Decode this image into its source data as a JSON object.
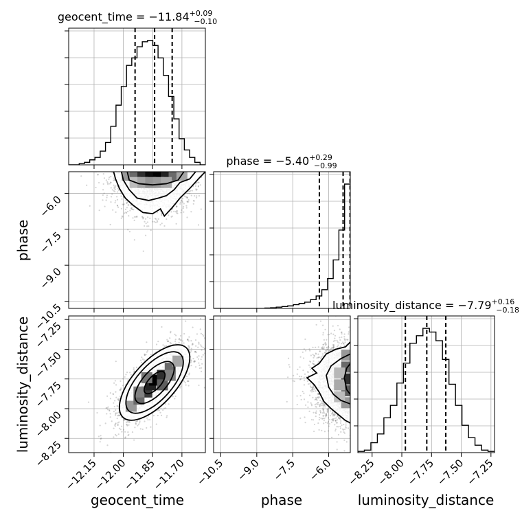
{
  "params": [
    "geocent_time",
    "phase",
    "luminosity_distance"
  ],
  "titles": [
    {
      "label": "geocent_time = ",
      "median": "−11.84",
      "plus": "+0.09",
      "minus": "−0.10"
    },
    {
      "label": "phase = ",
      "median": "−5.40",
      "plus": "+0.29",
      "minus": "−0.99"
    },
    {
      "label": "luminosity_distance = ",
      "median": "−7.79",
      "plus": "+0.16",
      "minus": "−0.18"
    }
  ],
  "axis_labels": {
    "x": [
      "geocent_time",
      "phase",
      "luminosity_distance"
    ],
    "y_row1": "phase",
    "y_row2": "luminosity_distance"
  },
  "chart_data": {
    "type": "corner",
    "grid": true,
    "colors": {
      "line": "#000000",
      "grid": "#b0b0b0",
      "scatter": "#555555"
    },
    "ranges": {
      "geocent_time": [
        -12.28,
        -11.58
      ],
      "phase": [
        -10.8,
        -5.1
      ],
      "luminosity_distance": [
        -8.37,
        -7.22
      ]
    },
    "ticks": {
      "geocent_time": [
        {
          "value": -12.15,
          "label": "−12.15"
        },
        {
          "value": -12.0,
          "label": "−12.00"
        },
        {
          "value": -11.85,
          "label": "−11.85"
        },
        {
          "value": -11.7,
          "label": "−11.70"
        }
      ],
      "phase": [
        {
          "value": -10.5,
          "label": "−10.5"
        },
        {
          "value": -9.0,
          "label": "−9.0"
        },
        {
          "value": -7.5,
          "label": "−7.5"
        },
        {
          "value": -6.0,
          "label": "−6.0"
        }
      ],
      "luminosity_distance": [
        {
          "value": -8.25,
          "label": "−8.25"
        },
        {
          "value": -8.0,
          "label": "−8.00"
        },
        {
          "value": -7.75,
          "label": "−7.75"
        },
        {
          "value": -7.5,
          "label": "−7.50"
        },
        {
          "value": -7.25,
          "label": "−7.25"
        }
      ]
    },
    "diag_yticks": [
      0.2,
      0.4,
      0.6,
      0.8,
      1.0
    ],
    "histograms": {
      "geocent_time": {
        "range": [
          -12.28,
          -11.58
        ],
        "counts": [
          0.0,
          0.0,
          0.01,
          0.02,
          0.04,
          0.06,
          0.11,
          0.18,
          0.31,
          0.48,
          0.63,
          0.8,
          0.86,
          0.95,
          0.99,
          1.0,
          0.96,
          0.86,
          0.72,
          0.55,
          0.37,
          0.21,
          0.12,
          0.06,
          0.02,
          0.0
        ],
        "median": -11.84,
        "lo": -11.94,
        "hi": -11.75
      },
      "phase": {
        "range": [
          -10.8,
          -5.1
        ],
        "counts": [
          0.0,
          0.0,
          0.0,
          0.0,
          0.0,
          0.0,
          0.0,
          0.0,
          0.0,
          0.003,
          0.005,
          0.01,
          0.015,
          0.02,
          0.03,
          0.04,
          0.05,
          0.07,
          0.1,
          0.15,
          0.24,
          0.39,
          0.63,
          1.0
        ],
        "median": -5.4,
        "lo": -6.39,
        "hi": -5.11
      },
      "luminosity_distance": {
        "range": [
          -8.37,
          -7.22
        ],
        "counts": [
          0.01,
          0.02,
          0.08,
          0.15,
          0.28,
          0.38,
          0.56,
          0.72,
          0.88,
          0.94,
          1.0,
          0.97,
          0.9,
          0.75,
          0.55,
          0.38,
          0.22,
          0.12,
          0.06,
          0.02,
          0.01
        ],
        "median": -7.79,
        "lo": -7.97,
        "hi": -7.63
      }
    },
    "pairs": [
      {
        "x": "geocent_time",
        "y": "phase",
        "center": [
          -11.84,
          -5.4
        ],
        "sigma": [
          0.1,
          0.75
        ],
        "rho": 0.0,
        "truncate_y_max": -5.1,
        "density_grid": {
          "x_range": [
            -12.28,
            -11.58
          ],
          "y_range": [
            -10.8,
            -5.1
          ],
          "cells": [
            [
              -11.98,
              -5.25,
              0.35
            ],
            [
              -11.94,
              -5.25,
              0.55
            ],
            [
              -11.9,
              -5.25,
              0.8
            ],
            [
              -11.86,
              -5.25,
              0.95
            ],
            [
              -11.82,
              -5.25,
              1.0
            ],
            [
              -11.78,
              -5.25,
              0.85
            ],
            [
              -11.74,
              -5.25,
              0.55
            ],
            [
              -11.7,
              -5.25,
              0.3
            ],
            [
              -11.94,
              -5.55,
              0.2
            ],
            [
              -11.9,
              -5.55,
              0.3
            ],
            [
              -11.86,
              -5.55,
              0.38
            ],
            [
              -11.82,
              -5.55,
              0.35
            ],
            [
              -11.78,
              -5.55,
              0.28
            ]
          ]
        },
        "contours": [
          [
            [
              -12.05,
              -5.1
            ],
            [
              -12.04,
              -5.4
            ],
            [
              -12.02,
              -5.8
            ],
            [
              -11.99,
              -6.2
            ],
            [
              -11.95,
              -6.5
            ],
            [
              -11.9,
              -6.8
            ],
            [
              -11.85,
              -6.85
            ],
            [
              -11.81,
              -6.65
            ],
            [
              -11.79,
              -6.95
            ],
            [
              -11.75,
              -6.6
            ],
            [
              -11.71,
              -6.2
            ],
            [
              -11.66,
              -5.8
            ],
            [
              -11.61,
              -5.35
            ],
            [
              -11.58,
              -5.1
            ]
          ],
          [
            [
              -12.01,
              -5.1
            ],
            [
              -12.0,
              -5.45
            ],
            [
              -11.97,
              -5.85
            ],
            [
              -11.93,
              -6.2
            ],
            [
              -11.87,
              -6.3
            ],
            [
              -11.82,
              -6.2
            ],
            [
              -11.78,
              -6.1
            ],
            [
              -11.74,
              -5.85
            ],
            [
              -11.71,
              -5.55
            ],
            [
              -11.66,
              -5.4
            ],
            [
              -11.63,
              -5.1
            ]
          ],
          [
            [
              -11.98,
              -5.1
            ],
            [
              -11.97,
              -5.45
            ],
            [
              -11.92,
              -5.6
            ],
            [
              -11.85,
              -5.65
            ],
            [
              -11.78,
              -5.6
            ],
            [
              -11.72,
              -5.45
            ],
            [
              -11.69,
              -5.1
            ]
          ]
        ]
      },
      {
        "x": "geocent_time",
        "y": "luminosity_distance",
        "center": [
          -11.84,
          -7.78
        ],
        "sigma": [
          0.1,
          0.17
        ],
        "rho": 0.72,
        "density_grid": {
          "x_range": [
            -12.28,
            -11.58
          ],
          "y_range": [
            -8.37,
            -7.22
          ],
          "cells": [
            [
              -11.96,
              -7.98,
              0.35
            ],
            [
              -11.92,
              -7.92,
              0.55
            ],
            [
              -11.88,
              -7.86,
              0.75
            ],
            [
              -11.86,
              -7.8,
              0.85
            ],
            [
              -11.84,
              -7.76,
              1.0
            ],
            [
              -11.8,
              -7.72,
              0.8
            ],
            [
              -11.76,
              -7.66,
              0.55
            ],
            [
              -11.72,
              -7.6,
              0.3
            ],
            [
              -11.92,
              -7.86,
              0.45
            ],
            [
              -11.8,
              -7.8,
              0.6
            ],
            [
              -11.88,
              -7.74,
              0.5
            ],
            [
              -11.76,
              -7.72,
              0.45
            ]
          ]
        },
        "contour_levels": [
          0.8,
          1.5,
          2.2,
          2.7
        ]
      },
      {
        "x": "phase",
        "y": "luminosity_distance",
        "center": [
          -5.4,
          -7.78
        ],
        "sigma": [
          0.75,
          0.17
        ],
        "rho": 0.0,
        "truncate_x_max": -5.1,
        "density_grid": {
          "x_range": [
            -10.8,
            -5.1
          ],
          "y_range": [
            -8.37,
            -7.22
          ],
          "cells": [
            [
              -5.25,
              -7.55,
              0.35
            ],
            [
              -5.25,
              -7.65,
              0.55
            ],
            [
              -5.25,
              -7.75,
              0.8
            ],
            [
              -5.25,
              -7.85,
              0.6
            ],
            [
              -5.25,
              -7.95,
              0.35
            ],
            [
              -5.55,
              -7.7,
              0.22
            ],
            [
              -5.55,
              -7.8,
              0.28
            ],
            [
              -5.55,
              -7.9,
              0.2
            ]
          ]
        },
        "contours": [
          [
            [
              -5.1,
              -7.44
            ],
            [
              -5.3,
              -7.48
            ],
            [
              -5.7,
              -7.5
            ],
            [
              -6.1,
              -7.54
            ],
            [
              -6.4,
              -7.62
            ],
            [
              -6.7,
              -7.66
            ],
            [
              -6.5,
              -7.7
            ],
            [
              -6.9,
              -7.74
            ],
            [
              -6.6,
              -7.8
            ],
            [
              -6.4,
              -7.86
            ],
            [
              -6.2,
              -7.94
            ],
            [
              -5.9,
              -8.0
            ],
            [
              -5.6,
              -8.05
            ],
            [
              -5.3,
              -8.1
            ],
            [
              -5.1,
              -8.12
            ]
          ],
          [
            [
              -5.1,
              -7.54
            ],
            [
              -5.5,
              -7.58
            ],
            [
              -5.9,
              -7.64
            ],
            [
              -6.1,
              -7.72
            ],
            [
              -6.0,
              -7.82
            ],
            [
              -5.8,
              -7.88
            ],
            [
              -5.5,
              -7.93
            ],
            [
              -5.1,
              -7.96
            ]
          ],
          [
            [
              -5.1,
              -7.62
            ],
            [
              -5.25,
              -7.66
            ],
            [
              -5.35,
              -7.74
            ],
            [
              -5.25,
              -7.84
            ],
            [
              -5.1,
              -7.88
            ]
          ]
        ]
      }
    ]
  }
}
